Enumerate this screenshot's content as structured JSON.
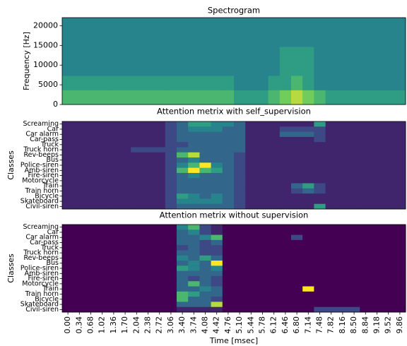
{
  "chart_data": [
    {
      "type": "heatmap",
      "title": "Spectrogram",
      "ylabel": "Frequency [Hz]",
      "ylim": [
        0,
        22050
      ],
      "yticks": [
        0,
        5000,
        10000,
        15000,
        20000
      ],
      "clim": [
        0,
        9
      ],
      "values": [
        [
          6,
          6,
          6,
          6,
          6,
          6,
          6,
          6,
          6,
          6,
          6,
          6,
          6,
          6,
          6,
          5,
          5,
          5,
          6,
          7,
          8,
          7,
          6,
          5,
          5,
          5,
          5,
          5,
          5,
          5
        ],
        [
          5,
          5,
          5,
          5,
          5,
          5,
          5,
          5,
          5,
          5,
          5,
          5,
          5,
          5,
          5,
          4,
          4,
          4,
          5,
          5,
          6,
          5,
          4,
          4,
          4,
          4,
          4,
          4,
          4,
          4
        ],
        [
          4,
          4,
          4,
          4,
          4,
          4,
          4,
          4,
          4,
          4,
          4,
          4,
          4,
          4,
          4,
          4,
          4,
          4,
          4,
          5,
          5,
          5,
          4,
          4,
          4,
          4,
          4,
          4,
          4,
          4
        ],
        [
          4,
          4,
          4,
          4,
          4,
          4,
          4,
          4,
          4,
          4,
          4,
          4,
          4,
          4,
          4,
          4,
          4,
          4,
          4,
          5,
          5,
          5,
          4,
          4,
          4,
          4,
          4,
          4,
          4,
          4
        ],
        [
          4,
          4,
          4,
          4,
          4,
          4,
          4,
          4,
          4,
          4,
          4,
          4,
          4,
          4,
          4,
          4,
          4,
          4,
          4,
          4,
          4,
          4,
          4,
          4,
          4,
          4,
          4,
          4,
          4,
          4
        ],
        [
          4,
          4,
          4,
          4,
          4,
          4,
          4,
          4,
          4,
          4,
          4,
          4,
          4,
          4,
          4,
          4,
          4,
          4,
          4,
          4,
          4,
          4,
          4,
          4,
          4,
          4,
          4,
          4,
          4,
          4
        ]
      ]
    },
    {
      "type": "heatmap",
      "title": "Attention metrix with self_supervision",
      "ylabel": "Classes",
      "clim": [
        0,
        9
      ],
      "categories": [
        "Screaming",
        "Car",
        "Car alarm",
        "Car-pass",
        "Truck",
        "Truck horn",
        "Rev-beeps",
        "Bus",
        "Police-siren",
        "Amb-siren",
        "Fire-siren",
        "Motorcycle",
        "Train",
        "Train horn",
        "Bicycle",
        "Skateboard",
        "Civil-siren"
      ],
      "values": [
        [
          1,
          1,
          1,
          1,
          1,
          1,
          1,
          1,
          1,
          2,
          3,
          5,
          5,
          4,
          4,
          3,
          1,
          1,
          1,
          1,
          1,
          1,
          5,
          1,
          1,
          1,
          1,
          1,
          1,
          1
        ],
        [
          1,
          1,
          1,
          1,
          1,
          1,
          1,
          1,
          1,
          2,
          3,
          4,
          4,
          4,
          3,
          3,
          1,
          1,
          1,
          2,
          2,
          2,
          2,
          1,
          1,
          1,
          1,
          1,
          1,
          1
        ],
        [
          1,
          1,
          1,
          1,
          1,
          1,
          1,
          1,
          1,
          2,
          3,
          3,
          3,
          3,
          3,
          3,
          1,
          1,
          1,
          3,
          3,
          3,
          2,
          1,
          1,
          1,
          1,
          1,
          1,
          1
        ],
        [
          1,
          1,
          1,
          1,
          1,
          1,
          1,
          1,
          1,
          2,
          3,
          3,
          3,
          3,
          3,
          3,
          1,
          1,
          1,
          1,
          1,
          1,
          2,
          1,
          1,
          1,
          1,
          1,
          1,
          1
        ],
        [
          1,
          1,
          1,
          1,
          1,
          1,
          1,
          1,
          1,
          2,
          2,
          3,
          3,
          3,
          3,
          3,
          1,
          1,
          1,
          1,
          1,
          1,
          1,
          1,
          1,
          1,
          1,
          1,
          1,
          1
        ],
        [
          1,
          1,
          1,
          1,
          1,
          1,
          2,
          2,
          2,
          2,
          3,
          3,
          3,
          3,
          3,
          3,
          1,
          1,
          1,
          1,
          1,
          1,
          1,
          1,
          1,
          1,
          1,
          1,
          1,
          1
        ],
        [
          1,
          1,
          1,
          1,
          1,
          1,
          1,
          1,
          1,
          2,
          6,
          8,
          3,
          3,
          3,
          2,
          1,
          1,
          1,
          1,
          1,
          1,
          1,
          1,
          1,
          1,
          1,
          1,
          1,
          1
        ],
        [
          1,
          1,
          1,
          1,
          1,
          1,
          1,
          1,
          1,
          2,
          3,
          4,
          3,
          3,
          3,
          2,
          1,
          1,
          1,
          1,
          1,
          1,
          1,
          1,
          1,
          1,
          1,
          1,
          1,
          1
        ],
        [
          1,
          1,
          1,
          1,
          1,
          1,
          1,
          1,
          1,
          2,
          4,
          6,
          9,
          4,
          3,
          2,
          1,
          1,
          1,
          1,
          1,
          1,
          1,
          1,
          1,
          1,
          1,
          1,
          1,
          1
        ],
        [
          1,
          1,
          1,
          1,
          1,
          1,
          1,
          1,
          1,
          2,
          6,
          9,
          6,
          5,
          3,
          2,
          1,
          1,
          1,
          1,
          1,
          1,
          1,
          1,
          1,
          1,
          1,
          1,
          1,
          1
        ],
        [
          1,
          1,
          1,
          1,
          1,
          1,
          1,
          1,
          1,
          2,
          3,
          4,
          3,
          3,
          3,
          2,
          1,
          1,
          1,
          1,
          1,
          1,
          1,
          1,
          1,
          1,
          1,
          1,
          1,
          1
        ],
        [
          1,
          1,
          1,
          1,
          1,
          1,
          1,
          1,
          1,
          2,
          3,
          3,
          3,
          3,
          3,
          2,
          1,
          1,
          1,
          1,
          1,
          1,
          1,
          1,
          1,
          1,
          1,
          1,
          1,
          1
        ],
        [
          1,
          1,
          1,
          1,
          1,
          1,
          1,
          1,
          1,
          2,
          3,
          3,
          3,
          3,
          3,
          2,
          1,
          1,
          1,
          1,
          3,
          5,
          2,
          1,
          1,
          1,
          1,
          1,
          1,
          1
        ],
        [
          1,
          1,
          1,
          1,
          1,
          1,
          1,
          1,
          1,
          2,
          3,
          3,
          3,
          3,
          3,
          2,
          1,
          1,
          1,
          1,
          2,
          3,
          2,
          1,
          1,
          1,
          1,
          1,
          1,
          1
        ],
        [
          1,
          1,
          1,
          1,
          1,
          1,
          1,
          1,
          1,
          2,
          5,
          4,
          3,
          4,
          3,
          2,
          1,
          1,
          1,
          1,
          1,
          1,
          1,
          1,
          1,
          1,
          1,
          1,
          1,
          1
        ],
        [
          1,
          1,
          1,
          1,
          1,
          1,
          1,
          1,
          1,
          2,
          4,
          4,
          4,
          4,
          3,
          2,
          1,
          1,
          1,
          1,
          1,
          1,
          1,
          1,
          1,
          1,
          1,
          1,
          1,
          1
        ],
        [
          1,
          1,
          1,
          1,
          1,
          1,
          1,
          1,
          1,
          2,
          3,
          3,
          3,
          3,
          3,
          2,
          1,
          1,
          1,
          1,
          1,
          1,
          5,
          1,
          1,
          1,
          1,
          1,
          1,
          1
        ]
      ]
    },
    {
      "type": "heatmap",
      "title": "Attention metrix without supervision",
      "ylabel": "Classes",
      "xlabel": "Time [msec]",
      "clim": [
        0,
        9
      ],
      "categories": [
        "Screaming",
        "Car",
        "Car alarm",
        "Car-pass",
        "Truck",
        "Truck horn",
        "Rev-beeps",
        "Bus",
        "Police-siren",
        "Amb-siren",
        "Fire-siren",
        "Motorcycle",
        "Train",
        "Train horn",
        "Bicycle",
        "Skateboard",
        "Civil-siren"
      ],
      "x": [
        "0.00",
        "0.34",
        "0.68",
        "1.02",
        "1.36",
        "1.70",
        "2.04",
        "2.38",
        "2.72",
        "3.06",
        "3.40",
        "3.74",
        "4.08",
        "4.42",
        "4.76",
        "5.10",
        "5.44",
        "5.78",
        "6.12",
        "6.46",
        "6.80",
        "7.14",
        "7.48",
        "7.82",
        "8.16",
        "8.50",
        "8.84",
        "9.18",
        "9.52",
        "9.86"
      ],
      "values": [
        [
          0,
          0,
          0,
          0,
          0,
          0,
          0,
          0,
          0,
          0,
          4,
          6,
          2,
          1,
          0,
          0,
          0,
          0,
          0,
          0,
          0,
          0,
          0,
          0,
          0,
          0,
          0,
          0,
          0,
          0
        ],
        [
          0,
          0,
          0,
          0,
          0,
          0,
          0,
          0,
          0,
          0,
          3,
          4,
          2,
          1,
          0,
          0,
          0,
          0,
          0,
          0,
          0,
          0,
          0,
          0,
          0,
          0,
          0,
          0,
          0,
          0
        ],
        [
          0,
          0,
          0,
          0,
          0,
          0,
          0,
          0,
          0,
          0,
          3,
          3,
          4,
          6,
          0,
          0,
          0,
          0,
          0,
          0,
          2,
          0,
          0,
          0,
          0,
          0,
          0,
          0,
          0,
          0
        ],
        [
          0,
          0,
          0,
          0,
          0,
          0,
          0,
          0,
          0,
          0,
          3,
          3,
          2,
          3,
          0,
          0,
          0,
          0,
          0,
          0,
          0,
          0,
          0,
          0,
          0,
          0,
          0,
          0,
          0,
          0
        ],
        [
          0,
          0,
          0,
          0,
          0,
          0,
          0,
          0,
          0,
          0,
          2,
          3,
          2,
          2,
          0,
          0,
          0,
          0,
          0,
          0,
          0,
          0,
          0,
          0,
          0,
          0,
          0,
          0,
          0,
          0
        ],
        [
          0,
          0,
          0,
          0,
          0,
          0,
          0,
          0,
          0,
          0,
          3,
          3,
          2,
          2,
          0,
          0,
          0,
          0,
          0,
          0,
          0,
          0,
          0,
          0,
          0,
          0,
          0,
          0,
          0,
          0
        ],
        [
          0,
          0,
          0,
          0,
          0,
          0,
          0,
          0,
          0,
          0,
          4,
          3,
          5,
          3,
          0,
          0,
          0,
          0,
          0,
          0,
          0,
          0,
          0,
          0,
          0,
          0,
          0,
          0,
          0,
          0
        ],
        [
          0,
          0,
          0,
          0,
          0,
          0,
          0,
          0,
          0,
          0,
          3,
          4,
          3,
          9,
          0,
          0,
          0,
          0,
          0,
          0,
          0,
          0,
          0,
          0,
          0,
          0,
          0,
          0,
          0,
          0
        ],
        [
          0,
          0,
          0,
          0,
          0,
          0,
          0,
          0,
          0,
          0,
          5,
          4,
          3,
          4,
          0,
          0,
          0,
          0,
          0,
          0,
          0,
          0,
          0,
          0,
          0,
          0,
          0,
          0,
          0,
          0
        ],
        [
          0,
          0,
          0,
          0,
          0,
          0,
          0,
          0,
          0,
          0,
          3,
          3,
          3,
          3,
          0,
          0,
          0,
          0,
          0,
          0,
          0,
          0,
          0,
          0,
          0,
          0,
          0,
          0,
          0,
          0
        ],
        [
          0,
          0,
          0,
          0,
          0,
          0,
          0,
          0,
          0,
          0,
          3,
          2,
          3,
          2,
          0,
          0,
          0,
          0,
          0,
          0,
          0,
          0,
          0,
          0,
          0,
          0,
          0,
          0,
          0,
          0
        ],
        [
          0,
          0,
          0,
          0,
          0,
          0,
          0,
          0,
          0,
          0,
          3,
          6,
          3,
          2,
          0,
          0,
          0,
          0,
          0,
          0,
          0,
          0,
          0,
          0,
          0,
          0,
          0,
          0,
          0,
          0
        ],
        [
          0,
          0,
          0,
          0,
          0,
          0,
          0,
          0,
          0,
          0,
          3,
          3,
          4,
          3,
          0,
          0,
          0,
          0,
          0,
          0,
          0,
          9,
          0,
          0,
          0,
          0,
          0,
          0,
          0,
          0
        ],
        [
          0,
          0,
          0,
          0,
          0,
          0,
          0,
          0,
          0,
          0,
          6,
          5,
          3,
          3,
          0,
          0,
          0,
          0,
          0,
          0,
          0,
          0,
          0,
          0,
          0,
          0,
          0,
          0,
          0,
          0
        ],
        [
          0,
          0,
          0,
          0,
          0,
          0,
          0,
          0,
          0,
          0,
          6,
          3,
          3,
          2,
          0,
          0,
          0,
          0,
          0,
          0,
          0,
          0,
          0,
          0,
          0,
          0,
          0,
          0,
          0,
          0
        ],
        [
          0,
          0,
          0,
          0,
          0,
          0,
          0,
          0,
          0,
          0,
          3,
          3,
          3,
          8,
          0,
          0,
          0,
          0,
          0,
          0,
          0,
          0,
          0,
          0,
          0,
          0,
          0,
          0,
          0,
          0
        ],
        [
          0,
          0,
          0,
          0,
          0,
          0,
          0,
          0,
          0,
          0,
          1,
          1,
          1,
          1,
          0,
          0,
          0,
          0,
          0,
          0,
          0,
          0,
          2,
          2,
          2,
          2,
          0,
          0,
          0,
          0
        ]
      ]
    }
  ]
}
